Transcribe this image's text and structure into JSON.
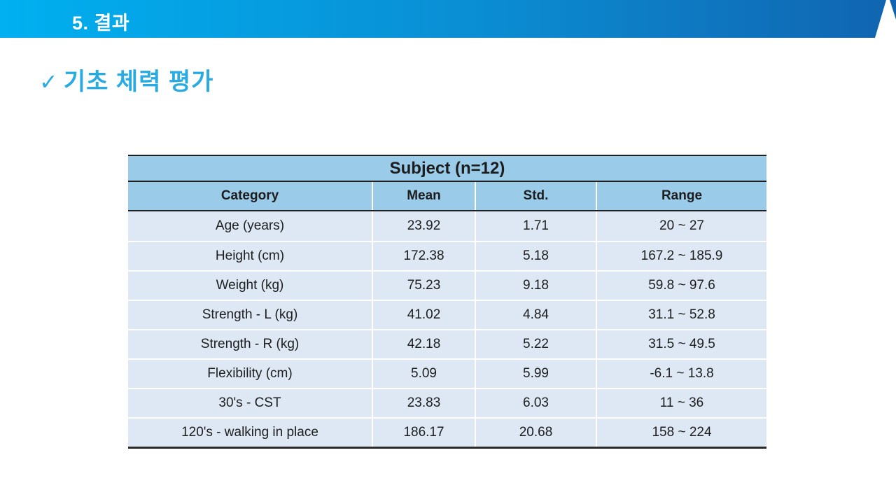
{
  "header": {
    "title": "5. 결과"
  },
  "section": {
    "check_icon": "✓",
    "title": "기초 체력 평가"
  },
  "colors": {
    "band_gradient_left": "#00b0f0",
    "band_gradient_right": "#1164b0",
    "accent_blue": "#29abe2",
    "table_header_bg": "#9acbe9",
    "table_row_bg": "#dde8f4",
    "table_line": "#1f1f1f"
  },
  "table": {
    "title": "Subject (n=12)",
    "columns": [
      "Category",
      "Mean",
      "Std.",
      "Range"
    ],
    "rows": [
      {
        "category": "Age (years)",
        "mean": "23.92",
        "std": "1.71",
        "range": "20 ~ 27"
      },
      {
        "category": "Height (cm)",
        "mean": "172.38",
        "std": "5.18",
        "range": "167.2 ~ 185.9"
      },
      {
        "category": "Weight (kg)",
        "mean": "75.23",
        "std": "9.18",
        "range": "59.8 ~ 97.6"
      },
      {
        "category": "Strength - L (kg)",
        "mean": "41.02",
        "std": "4.84",
        "range": "31.1 ~ 52.8"
      },
      {
        "category": "Strength - R (kg)",
        "mean": "42.18",
        "std": "5.22",
        "range": "31.5 ~ 49.5"
      },
      {
        "category": "Flexibility (cm)",
        "mean": "5.09",
        "std": "5.99",
        "range": "-6.1 ~ 13.8"
      },
      {
        "category": "30's - CST",
        "mean": "23.83",
        "std": "6.03",
        "range": "11 ~ 36"
      },
      {
        "category": "120's - walking in place",
        "mean": "186.17",
        "std": "20.68",
        "range": "158 ~ 224"
      }
    ]
  }
}
